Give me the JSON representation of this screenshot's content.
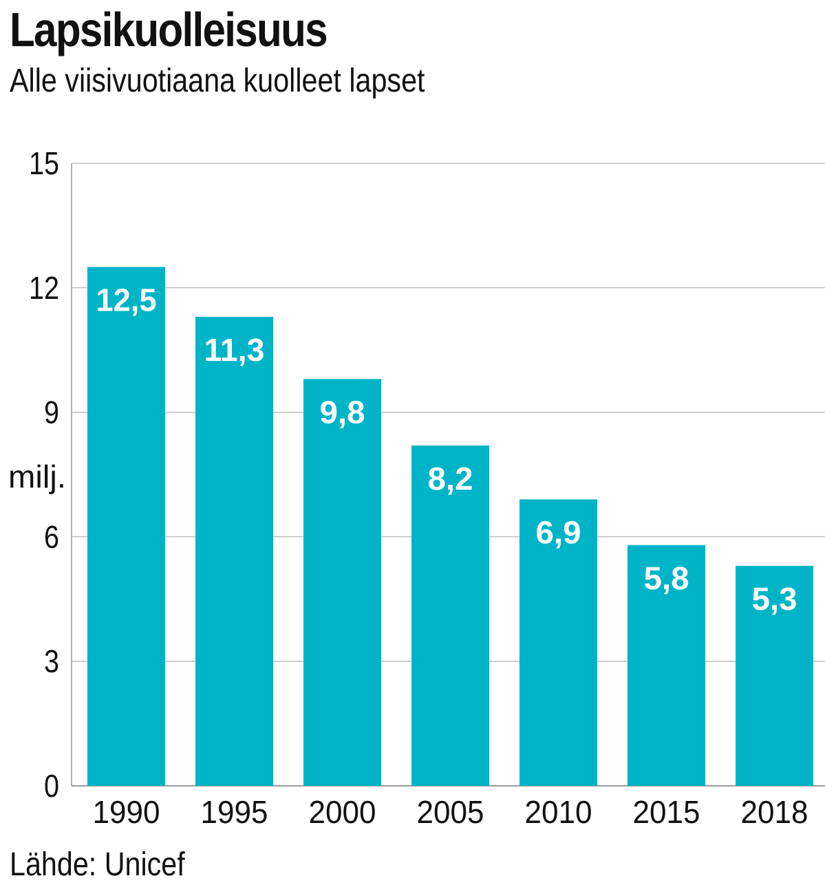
{
  "title": "Lapsikuolleisuus",
  "subtitle": "Alle viisivuotiaana kuolleet lapset",
  "source": "Lähde: Unicef",
  "colors": {
    "bar": "#00b4c8",
    "grid": "#bfbfbf",
    "axis": "#9a9a9a"
  },
  "chart_data": {
    "type": "bar",
    "title": "Lapsikuolleisuus",
    "subtitle": "Alle viisivuotiaana kuolleet lapset",
    "xlabel": "",
    "ylabel": "milj.",
    "categories": [
      "1990",
      "1995",
      "2000",
      "2005",
      "2010",
      "2015",
      "2018"
    ],
    "values": [
      12.5,
      11.3,
      9.8,
      8.2,
      6.9,
      5.8,
      5.3
    ],
    "value_labels": [
      "12,5",
      "11,3",
      "9,8",
      "8,2",
      "6,9",
      "5,8",
      "5,3"
    ],
    "ylim": [
      0,
      15
    ],
    "yticks": [
      0,
      3,
      6,
      9,
      12,
      15
    ],
    "grid": true
  }
}
